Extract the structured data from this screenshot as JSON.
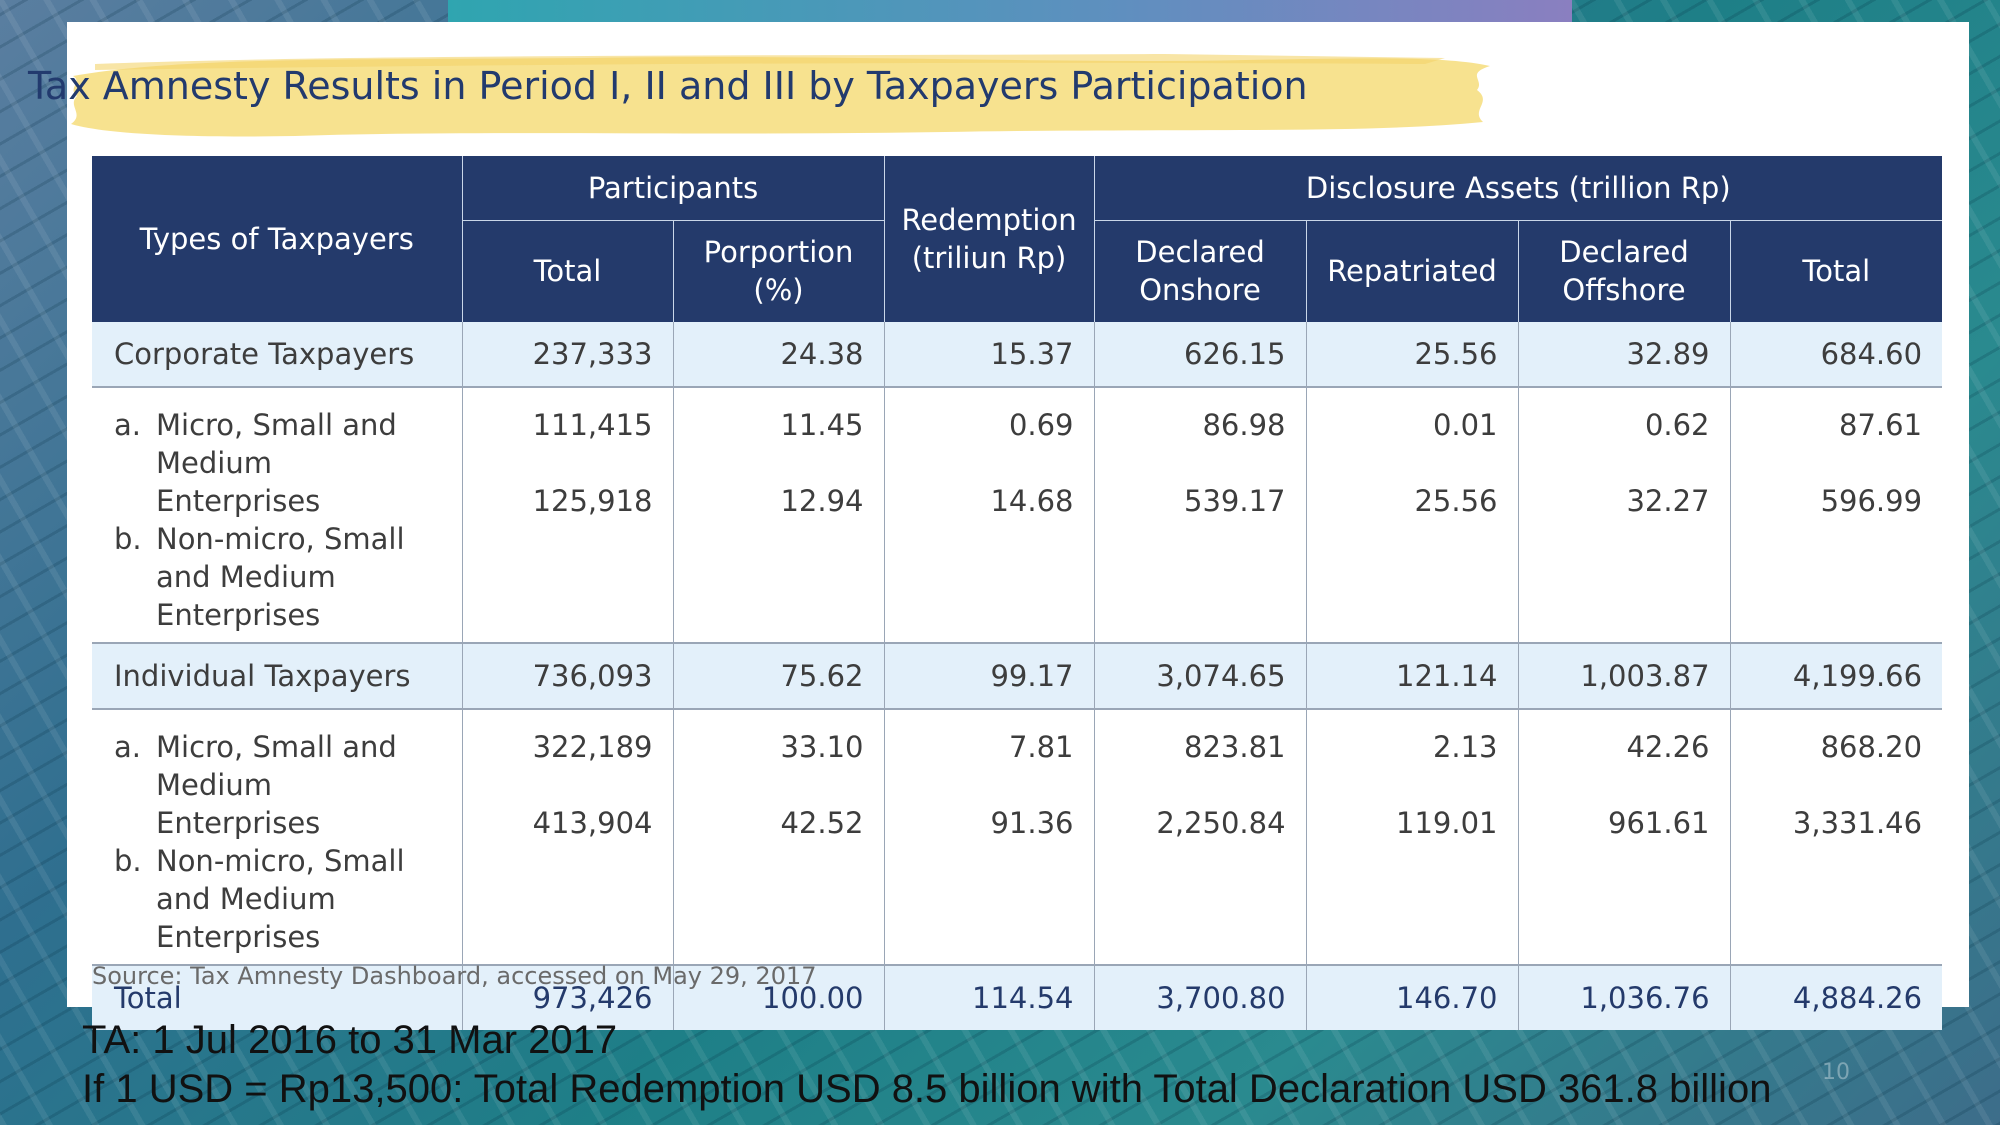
{
  "title": "Tax Amnesty Results in Period I, II and III by Taxpayers Participation",
  "headers": {
    "types": "Types of Taxpayers",
    "participants": "Participants",
    "total": "Total",
    "proportion": "Porportion (%)",
    "redemption": "Redemption (triliun Rp)",
    "disclosure": "Disclosure Assets (trillion Rp)",
    "declared_onshore": "Declared Onshore",
    "repatriated": "Repatriated",
    "declared_offshore": "Declared Offshore",
    "disclosure_total": "Total"
  },
  "rows": {
    "corporate": {
      "label": "Corporate Taxpayers",
      "values": [
        "237,333",
        "24.38",
        "15.37",
        "626.15",
        "25.56",
        "32.89",
        "684.60"
      ]
    },
    "corporate_sub": {
      "a_marker": "a.",
      "a_label": "Micro, Small and Medium Enterprises",
      "b_marker": "b.",
      "b_label": "Non-micro, Small and Medium Enterprises",
      "a_values": [
        "111,415",
        "11.45",
        "0.69",
        "86.98",
        "0.01",
        "0.62",
        "87.61"
      ],
      "b_values": [
        "125,918",
        "12.94",
        "14.68",
        "539.17",
        "25.56",
        "32.27",
        "596.99"
      ]
    },
    "individual": {
      "label": "Individual Taxpayers",
      "values": [
        "736,093",
        "75.62",
        "99.17",
        "3,074.65",
        "121.14",
        "1,003.87",
        "4,199.66"
      ]
    },
    "individual_sub": {
      "a_marker": "a.",
      "a_label": "Micro, Small and Medium Enterprises",
      "b_marker": "b.",
      "b_label": "Non-micro, Small and Medium Enterprises",
      "a_values": [
        "322,189",
        "33.10",
        "7.81",
        "823.81",
        "2.13",
        "42.26",
        "868.20"
      ],
      "b_values": [
        "413,904",
        "42.52",
        "91.36",
        "2,250.84",
        "119.01",
        "961.61",
        "3,331.46"
      ]
    },
    "total": {
      "label": "Total",
      "values": [
        "973,426",
        "100.00",
        "114.54",
        "3,700.80",
        "146.70",
        "1,036.76",
        "4,884.26"
      ]
    }
  },
  "source": "Source: Tax Amnesty Dashboard, accessed on May 29, 2017",
  "notes": {
    "line1": "TA: 1 Jul 2016 to 31 Mar 2017",
    "line2": "If 1 USD = Rp13,500: Total Redemption USD 8.5 billion with Total Declaration USD 361.8 billion"
  },
  "page_number": "10",
  "colors": {
    "header_bg": "#243a6b",
    "shaded_row": "#e3f0fa",
    "title_text": "#223a6e",
    "title_highlight": "#f6df86"
  }
}
